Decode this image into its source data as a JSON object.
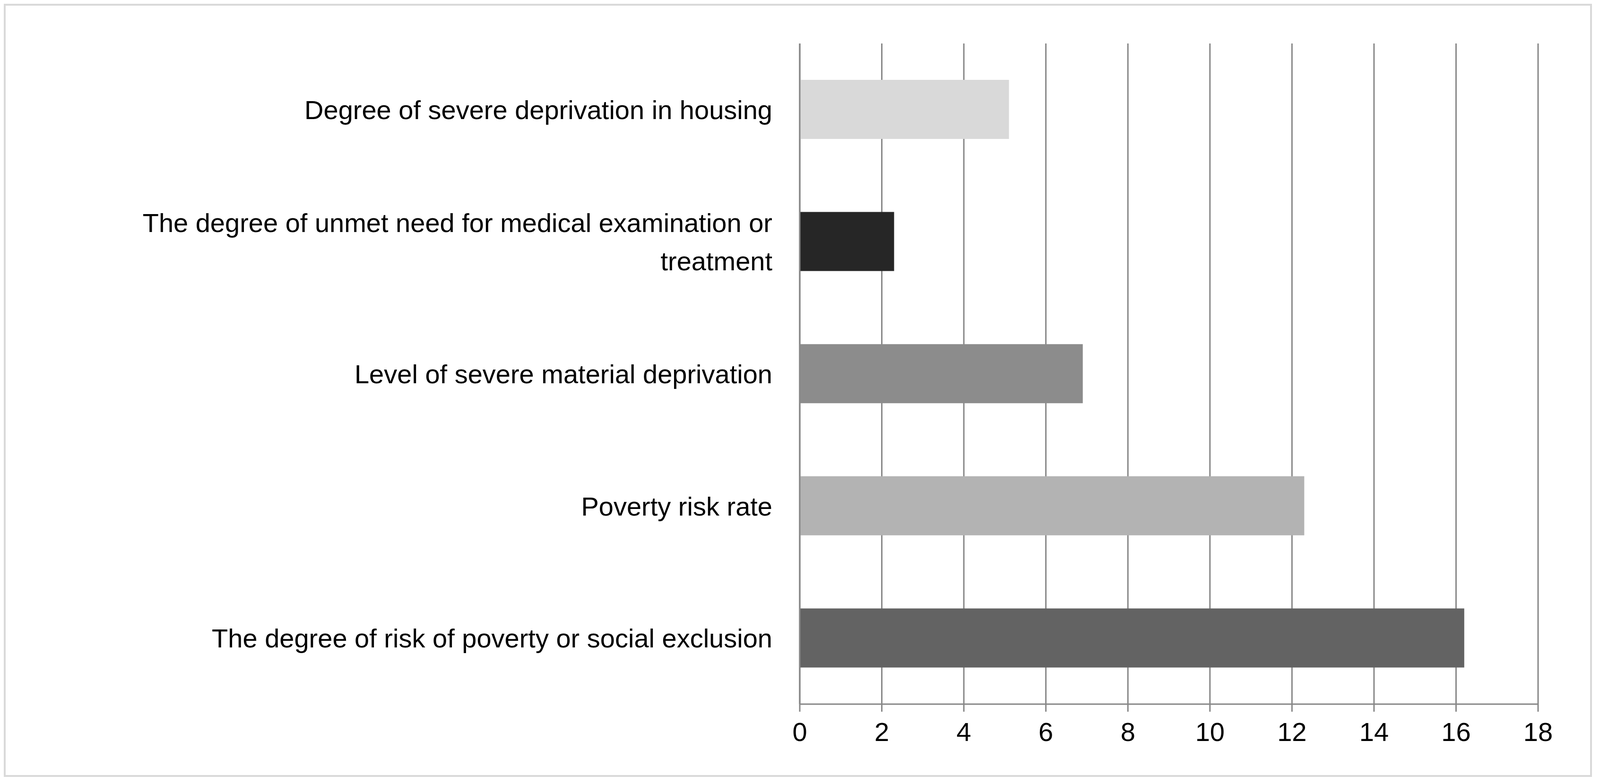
{
  "chart_data": {
    "type": "bar",
    "orientation": "horizontal",
    "categories": [
      "Degree of severe deprivation in housing",
      "The degree of unmet need for medical examination or treatment",
      "Level of severe material deprivation",
      "Poverty risk rate",
      "The degree of risk of poverty or social exclusion"
    ],
    "values": [
      5.1,
      2.3,
      6.9,
      12.3,
      16.2
    ],
    "colors": [
      "#d9d9d9",
      "#262626",
      "#8c8c8c",
      "#b3b3b3",
      "#636363"
    ],
    "xlim": [
      0,
      18
    ],
    "xticks": [
      0,
      2,
      4,
      6,
      8,
      10,
      12,
      14,
      16,
      18
    ],
    "grid": true
  }
}
